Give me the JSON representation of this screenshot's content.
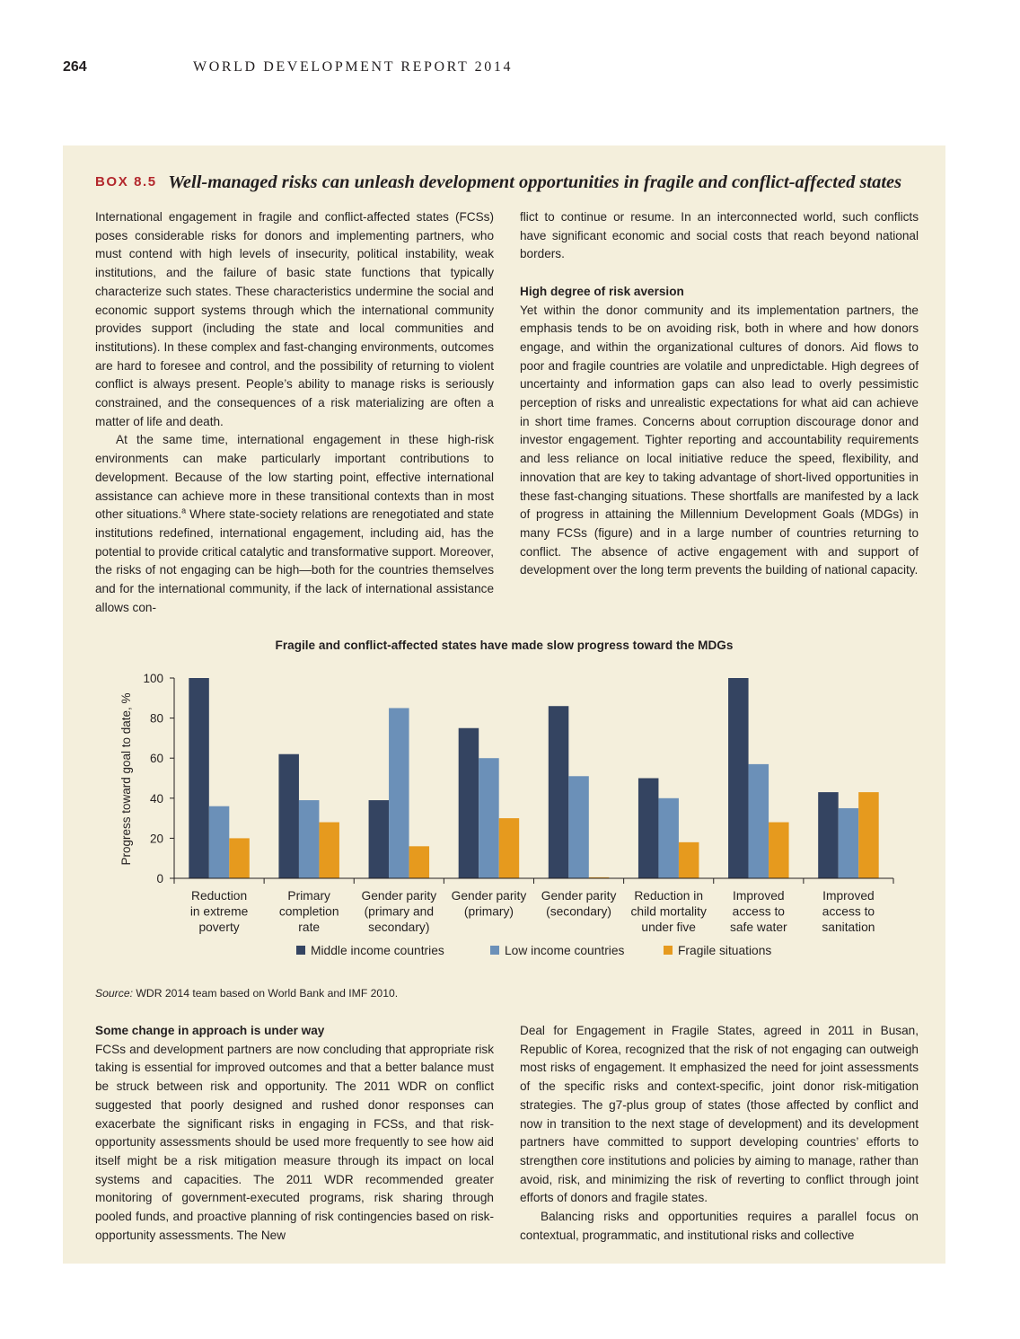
{
  "header": {
    "page_number": "264",
    "running_head": "WORLD DEVELOPMENT REPORT 2014"
  },
  "box": {
    "label": "BOX 8.5",
    "title": "Well-managed risks can unleash development opportunities in fragile and conflict-affected states",
    "col_a_p1": "International engagement in fragile and conflict-affected states (FCSs) poses considerable risks for donors and implementing partners, who must contend with high levels of insecurity, political instability, weak institutions, and the failure of basic state functions that typically characterize such states. These characteristics undermine the social and economic support systems through which the international community provides support (including the state and local communities and institutions). In these complex and fast-changing environments, outcomes are hard to foresee and control, and the possibility of returning to violent conflict is always present. People’s ability to manage risks is seriously constrained, and the consequences of a risk materializing are often a matter of life and death.",
    "col_a_p2_pre": "At the same time, international engagement in these high-risk environments can make particularly important contributions to development. Because of the low starting point, effective international assistance can achieve more in these transitional contexts than in most other situations.",
    "col_a_p2_note": "a",
    "col_a_p2_post": " Where state-society relations are renegotiated and state institutions redefined, international engagement, including aid, has the potential to provide critical catalytic and transformative support. Moreover, the risks of not engaging can be high—both for the countries themselves and for the international community, if the lack of international assistance allows con-",
    "col_b_p1": "flict to continue or resume. In an interconnected world, such conflicts have significant economic and social costs that reach beyond national borders.",
    "col_b_heading": "High degree of risk aversion",
    "col_b_p2": "Yet within the donor community and its implementation partners, the emphasis tends to be on avoiding risk, both in where and how donors engage, and within the organizational cultures of donors. Aid flows to poor and fragile countries are volatile and unpredictable. High degrees of uncertainty and information gaps can also lead to overly pessimistic perception of risks and unrealistic expectations for what aid can achieve in short time frames. Concerns about corruption discourage donor and investor engagement. Tighter reporting and accountability requirements and less reliance on local initiative reduce the speed, flexibility, and innovation that are key to taking advantage of short-lived opportunities in these fast-changing situations. These shortfalls are manifested by a lack of progress in attaining the Millennium Development Goals (MDGs) in many FCSs (figure) and in a large number of countries returning to conflict. The absence of active engagement with and support of development over the long term prevents the building of national capacity.",
    "col_c_heading": "Some change in approach is under way",
    "col_c_p1": "FCSs and development partners are now concluding that appropriate risk taking is essential for improved outcomes and that a better balance must be struck between risk and opportunity. The 2011 WDR on conflict suggested that poorly designed and rushed donor responses can exacerbate the significant risks in engaging in FCSs, and that risk-opportunity assessments should be used more frequently to see how aid itself might be a risk mitigation measure through its impact on local systems and capacities. The 2011 WDR recommended greater monitoring of government-executed programs, risk sharing through pooled funds, and proactive planning of risk contingencies based on risk-opportunity assessments. The New",
    "col_d_p1": "Deal for Engagement in Fragile States, agreed in 2011 in Busan, Republic of Korea, recognized that the risk of not engaging can outweigh most risks of engagement. It emphasized the need for joint assessments of the specific risks and context-specific, joint donor risk-mitigation strategies. The g7-plus group of states (those affected by conflict and now in transition to the next stage of development) and its development partners have committed to support developing countries’ efforts to strengthen core institutions and policies by aiming to manage, rather than avoid, risk, and minimizing the risk of reverting to conflict through joint efforts of donors and fragile states.",
    "col_d_p2": "Balancing risks and opportunities requires a parallel focus on contextual, programmatic, and institutional risks and collective",
    "source_label": "Source:",
    "source_text": " WDR 2014 team based on World Bank and IMF 2010."
  },
  "chart_data": {
    "type": "bar",
    "title": "Fragile and conflict-affected states have made slow progress toward the MDGs",
    "ylabel": "Progress toward goal to date, %",
    "ylim": [
      0,
      100
    ],
    "yticks": [
      0,
      20,
      40,
      60,
      80,
      100
    ],
    "legend_position": "bottom-center",
    "categories": [
      [
        "Reduction",
        "in extreme",
        "poverty"
      ],
      [
        "Primary",
        "completion",
        "rate"
      ],
      [
        "Gender parity",
        "(primary and",
        "secondary)"
      ],
      [
        "Gender parity",
        "(primary)"
      ],
      [
        "Gender parity",
        "(secondary)"
      ],
      [
        "Reduction in",
        "child mortality",
        "under five"
      ],
      [
        "Improved",
        "access to",
        "safe water"
      ],
      [
        "Improved",
        "access to",
        "sanitation"
      ]
    ],
    "series": [
      {
        "name": "Middle income countries",
        "color": "#344461",
        "values": [
          100,
          62,
          39,
          75,
          86,
          50,
          100,
          43
        ]
      },
      {
        "name": "Low income countries",
        "color": "#6b90b8",
        "values": [
          36,
          39,
          85,
          60,
          51,
          40,
          57,
          35
        ]
      },
      {
        "name": "Fragile situations",
        "color": "#e69a1e",
        "values": [
          20,
          28,
          16,
          30,
          0.5,
          18,
          28,
          43
        ]
      }
    ]
  }
}
